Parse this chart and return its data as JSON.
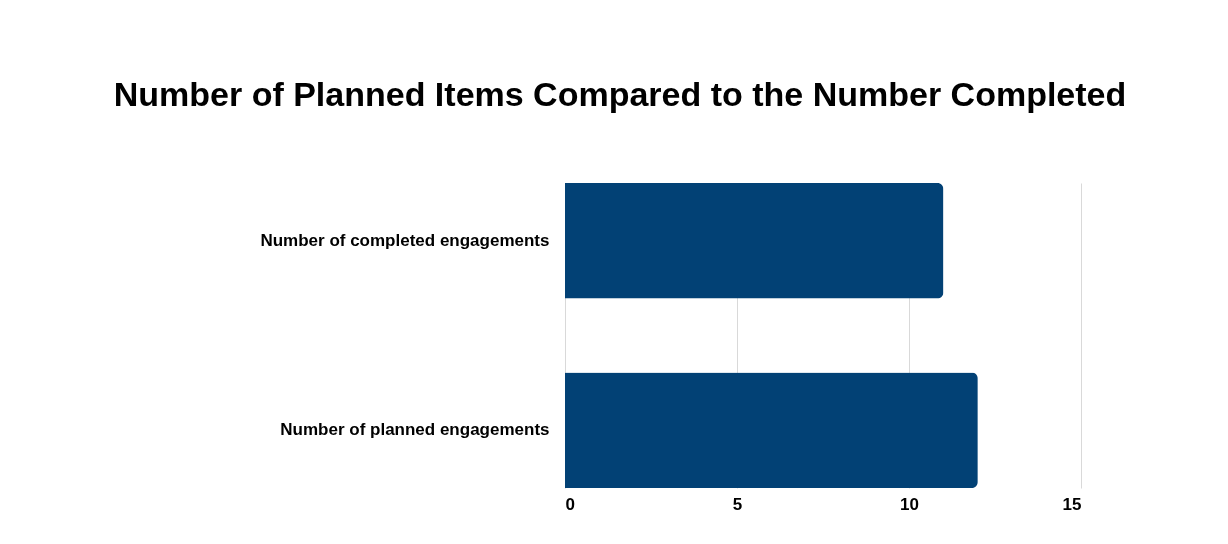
{
  "chart_data": {
    "type": "bar",
    "orientation": "horizontal",
    "title": "Number of Planned Items Compared to the Number Completed",
    "categories": [
      "Number of completed engagements",
      "Number of planned engagements"
    ],
    "values": [
      11,
      12
    ],
    "color": "#024175",
    "xlim": [
      0,
      15
    ],
    "xticks": [
      0,
      5,
      10,
      15
    ],
    "grid": "x"
  }
}
